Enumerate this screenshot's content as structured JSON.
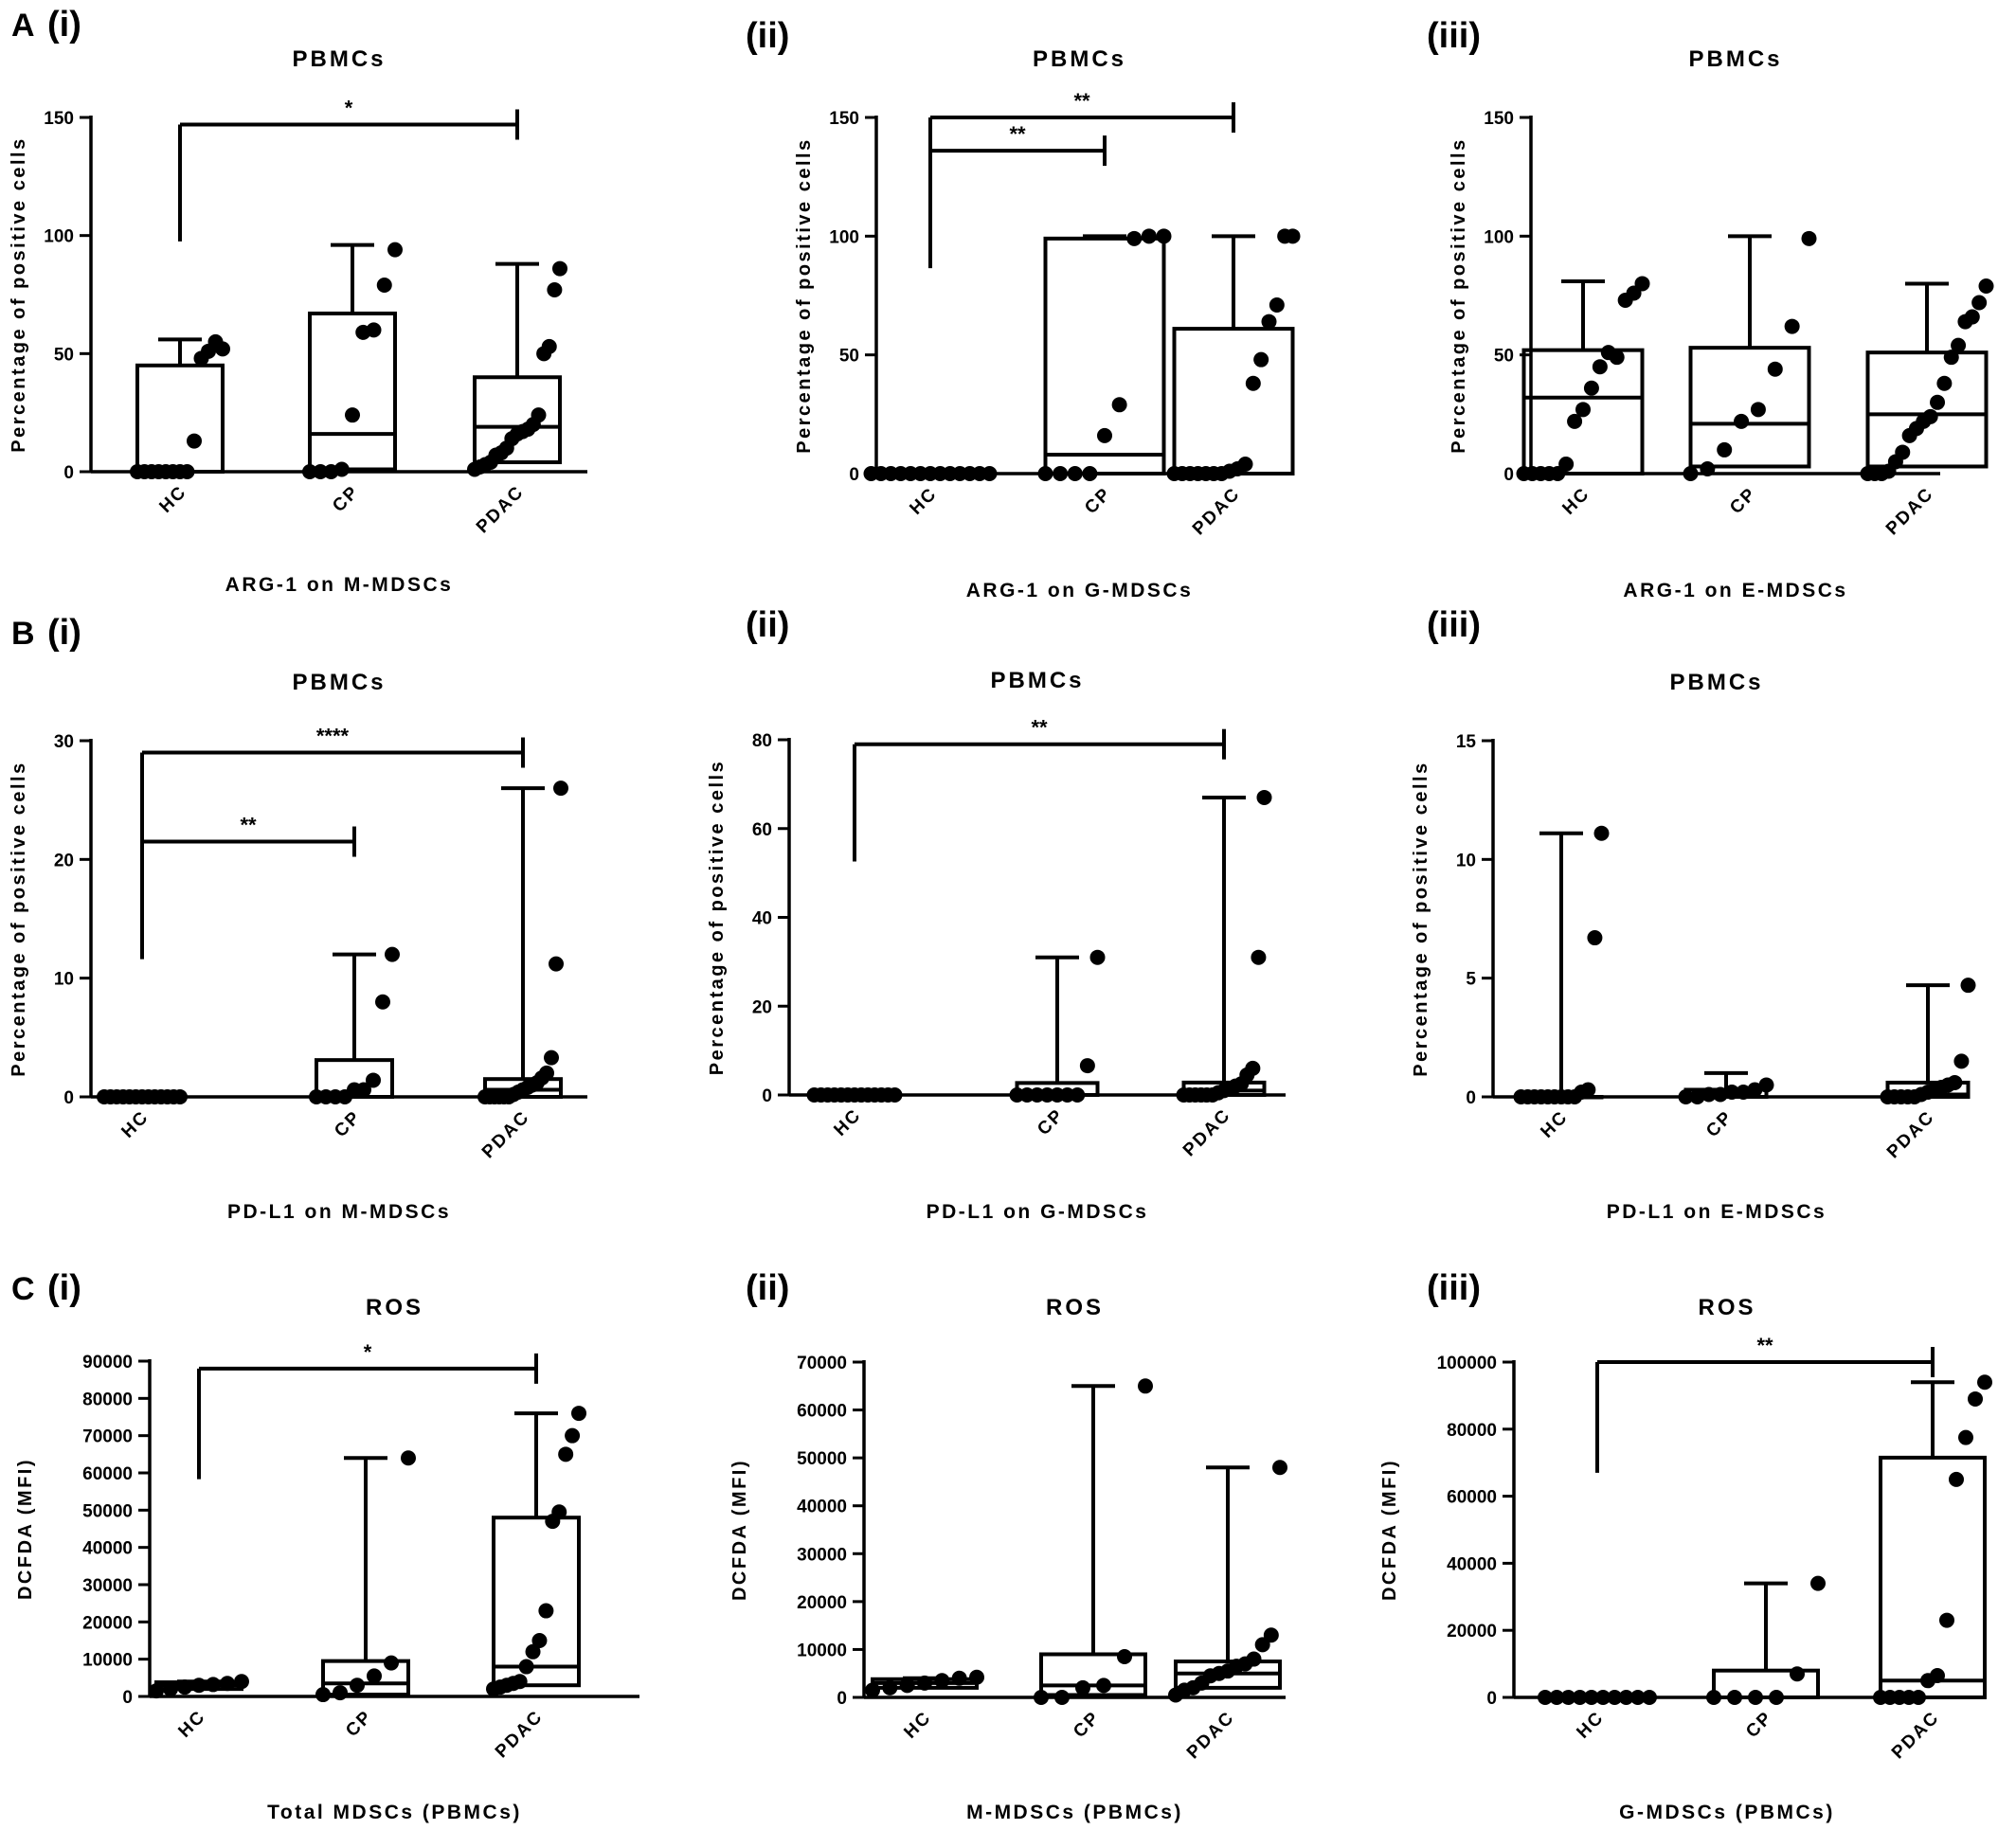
{
  "rows": [
    {
      "letter": "A"
    },
    {
      "letter": "B"
    },
    {
      "letter": "C"
    }
  ],
  "chart_data": [
    {
      "type": "box",
      "panel": "(i)",
      "title": "PBMCs",
      "ylabel": "Percentage of positive cells",
      "xlabel": "ARG-1 on M-MDSCs",
      "categories": [
        "HC",
        "CP",
        "PDAC"
      ],
      "ylim": [
        0,
        150
      ],
      "yticks": [
        0,
        50,
        100,
        150
      ],
      "grid": false,
      "boxes": [
        {
          "min": 0,
          "q1": 0,
          "median": 0,
          "q3": 45,
          "max": 56
        },
        {
          "min": 0,
          "q1": 1,
          "median": 16,
          "q3": 67,
          "max": 96
        },
        {
          "min": 1,
          "q1": 4,
          "median": 19,
          "q3": 40,
          "max": 88
        }
      ],
      "points": [
        [
          0,
          0,
          0,
          0,
          0,
          0,
          0,
          0,
          13,
          48,
          51,
          55,
          52
        ],
        [
          0,
          0,
          0,
          1,
          24,
          59,
          60,
          79,
          94
        ],
        [
          1,
          2,
          3,
          4,
          7,
          8,
          10,
          14,
          16,
          17,
          18,
          20,
          24,
          50,
          53,
          77,
          86
        ]
      ],
      "significance": [
        {
          "from": "HC",
          "to": "PDAC",
          "label": "*",
          "y": 147
        }
      ]
    },
    {
      "type": "box",
      "panel": "(ii)",
      "title": "PBMCs",
      "ylabel": "Percentage of positive cells",
      "xlabel": "ARG-1 on G-MDSCs",
      "categories": [
        "HC",
        "CP",
        "PDAC"
      ],
      "ylim": [
        0,
        150
      ],
      "yticks": [
        0,
        50,
        100,
        150
      ],
      "grid": false,
      "boxes": [
        {
          "min": 0,
          "q1": 0,
          "median": 0,
          "q3": 0,
          "max": 0
        },
        {
          "min": 0,
          "q1": 0,
          "median": 8,
          "q3": 99,
          "max": 100
        },
        {
          "min": 0,
          "q1": 0,
          "median": 0,
          "q3": 61,
          "max": 100
        }
      ],
      "points": [
        [
          0,
          0,
          0,
          0,
          0,
          0,
          0,
          0,
          0,
          0,
          0,
          0,
          0
        ],
        [
          0,
          0,
          0,
          0,
          16,
          29,
          99,
          100,
          100
        ],
        [
          0,
          0,
          0,
          0,
          0,
          0,
          0,
          1,
          2,
          4,
          38,
          48,
          64,
          71,
          100,
          100
        ]
      ],
      "significance": [
        {
          "from": "HC",
          "to": "CP",
          "label": "**",
          "y": 136
        },
        {
          "from": "HC",
          "to": "PDAC",
          "label": "**",
          "y": 150
        }
      ]
    },
    {
      "type": "box",
      "panel": "(iii)",
      "title": "PBMCs",
      "ylabel": "Percentage of positive cells",
      "xlabel": "ARG-1 on E-MDSCs",
      "categories": [
        "HC",
        "CP",
        "PDAC"
      ],
      "ylim": [
        0,
        150
      ],
      "yticks": [
        0,
        50,
        100,
        150
      ],
      "grid": false,
      "boxes": [
        {
          "min": 0,
          "q1": 0,
          "median": 32,
          "q3": 52,
          "max": 81
        },
        {
          "min": 0,
          "q1": 3,
          "median": 21,
          "q3": 53,
          "max": 100
        },
        {
          "min": 0,
          "q1": 3,
          "median": 25,
          "q3": 51,
          "max": 80
        }
      ],
      "points": [
        [
          0,
          0,
          0,
          0,
          0,
          4,
          22,
          27,
          36,
          45,
          51,
          49,
          73,
          76,
          80
        ],
        [
          0,
          2,
          10,
          22,
          27,
          44,
          62,
          99
        ],
        [
          0,
          0,
          0,
          1,
          5,
          9,
          16,
          19,
          22,
          24,
          30,
          38,
          49,
          54,
          64,
          66,
          72,
          79
        ]
      ],
      "significance": []
    },
    {
      "type": "box",
      "panel": "(i)",
      "title": "PBMCs",
      "ylabel": "Percentage of positive cells",
      "xlabel": "PD-L1 on M-MDSCs",
      "categories": [
        "HC",
        "CP",
        "PDAC"
      ],
      "ylim": [
        0,
        30
      ],
      "yticks": [
        0,
        10,
        20,
        30
      ],
      "grid": false,
      "boxes": [
        {
          "min": 0,
          "q1": 0,
          "median": 0,
          "q3": 0,
          "max": 0
        },
        {
          "min": 0,
          "q1": 0,
          "median": 0,
          "q3": 3.1,
          "max": 12
        },
        {
          "min": 0,
          "q1": 0,
          "median": 0.6,
          "q3": 1.5,
          "max": 26
        }
      ],
      "points": [
        [
          0,
          0,
          0,
          0,
          0,
          0,
          0,
          0,
          0,
          0,
          0,
          0,
          0
        ],
        [
          0,
          0,
          0,
          0,
          0.6,
          0.6,
          1.4,
          8,
          12
        ],
        [
          0,
          0,
          0,
          0,
          0,
          0,
          0.2,
          0.4,
          0.6,
          0.8,
          1,
          1.2,
          1.6,
          2,
          3.3,
          11.2,
          26
        ]
      ],
      "significance": [
        {
          "from": "HC",
          "to": "CP",
          "label": "**",
          "y": 21.5
        },
        {
          "from": "HC",
          "to": "PDAC",
          "label": "****",
          "y": 29
        }
      ]
    },
    {
      "type": "box",
      "panel": "(ii)",
      "title": "PBMCs",
      "ylabel": "Percentage of positive cells",
      "xlabel": "PD-L1 on G-MDSCs",
      "categories": [
        "HC",
        "CP",
        "PDAC"
      ],
      "ylim": [
        0,
        80
      ],
      "yticks": [
        0,
        20,
        40,
        60,
        80
      ],
      "grid": false,
      "boxes": [
        {
          "min": 0,
          "q1": 0,
          "median": 0,
          "q3": 0,
          "max": 0
        },
        {
          "min": 0,
          "q1": 0,
          "median": 0,
          "q3": 2.7,
          "max": 31
        },
        {
          "min": 0,
          "q1": 0,
          "median": 1,
          "q3": 2.8,
          "max": 67
        }
      ],
      "points": [
        [
          0,
          0,
          0,
          0,
          0,
          0,
          0,
          0,
          0,
          0,
          0,
          0,
          0
        ],
        [
          0,
          0,
          0,
          0,
          0,
          0,
          0,
          6.6,
          31
        ],
        [
          0,
          0,
          0,
          0,
          0,
          0,
          0.5,
          1,
          1.5,
          2,
          2.5,
          4.5,
          6,
          31,
          67
        ]
      ],
      "significance": [
        {
          "from": "HC",
          "to": "PDAC",
          "label": "**",
          "y": 79
        }
      ]
    },
    {
      "type": "box",
      "panel": "(iii)",
      "title": "PBMCs",
      "ylabel": "Percentage of positive cells",
      "xlabel": "PD-L1 on E-MDSCs",
      "categories": [
        "HC",
        "CP",
        "PDAC"
      ],
      "ylim": [
        0,
        15
      ],
      "yticks": [
        0,
        5,
        10,
        15
      ],
      "grid": false,
      "boxes": [
        {
          "min": 0,
          "q1": 0,
          "median": 0,
          "q3": 0,
          "max": 11.1
        },
        {
          "min": 0,
          "q1": 0,
          "median": 0,
          "q3": 0.3,
          "max": 1
        },
        {
          "min": 0,
          "q1": 0,
          "median": 0.1,
          "q3": 0.6,
          "max": 4.7
        }
      ],
      "points": [
        [
          0,
          0,
          0,
          0,
          0,
          0,
          0,
          0,
          0,
          0.2,
          0.3,
          6.7,
          11.1
        ],
        [
          0,
          0,
          0.1,
          0.1,
          0.2,
          0.2,
          0.3,
          0.5
        ],
        [
          0,
          0,
          0,
          0,
          0,
          0.1,
          0.2,
          0.3,
          0.4,
          0.5,
          0.6,
          1.5,
          4.7
        ]
      ],
      "significance": []
    },
    {
      "type": "box",
      "panel": "(i)",
      "title": "ROS",
      "ylabel": "DCFDA (MFI)",
      "xlabel": "Total MDSCs (PBMCs)",
      "categories": [
        "HC",
        "CP",
        "PDAC"
      ],
      "ylim": [
        0,
        90000
      ],
      "yticks": [
        0,
        10000,
        20000,
        30000,
        40000,
        50000,
        60000,
        70000,
        80000,
        90000
      ],
      "grid": false,
      "boxes": [
        {
          "min": 1500,
          "q1": 2000,
          "median": 3000,
          "q3": 3800,
          "max": 4000
        },
        {
          "min": 300,
          "q1": 500,
          "median": 3500,
          "q3": 9500,
          "max": 64000
        },
        {
          "min": 1500,
          "q1": 3000,
          "median": 8000,
          "q3": 48000,
          "max": 76000
        }
      ],
      "points": [
        [
          1500,
          2000,
          2500,
          3000,
          3200,
          3500,
          4000
        ],
        [
          500,
          1000,
          3000,
          5500,
          9000,
          64000
        ],
        [
          2000,
          2500,
          3000,
          3500,
          4000,
          8000,
          12000,
          15000,
          23000,
          47000,
          49500,
          65000,
          70000,
          76000
        ]
      ],
      "significance": [
        {
          "from": "HC",
          "to": "PDAC",
          "label": "*",
          "y": 88000
        }
      ]
    },
    {
      "type": "box",
      "panel": "(ii)",
      "title": "ROS",
      "ylabel": "DCFDA (MFI)",
      "xlabel": "M-MDSCs (PBMCs)",
      "categories": [
        "HC",
        "CP",
        "PDAC"
      ],
      "ylim": [
        0,
        70000
      ],
      "yticks": [
        0,
        10000,
        20000,
        30000,
        40000,
        50000,
        60000,
        70000
      ],
      "grid": false,
      "boxes": [
        {
          "min": 1500,
          "q1": 2000,
          "median": 3000,
          "q3": 3800,
          "max": 4000
        },
        {
          "min": 0,
          "q1": 500,
          "median": 2500,
          "q3": 9000,
          "max": 65000
        },
        {
          "min": 500,
          "q1": 2000,
          "median": 5000,
          "q3": 7500,
          "max": 48000
        }
      ],
      "points": [
        [
          1500,
          2000,
          2500,
          3000,
          3500,
          4000,
          4200
        ],
        [
          0,
          0,
          2000,
          2500,
          8500,
          65000
        ],
        [
          500,
          1500,
          2000,
          3000,
          4500,
          5000,
          5500,
          6500,
          7000,
          8000,
          11000,
          13000,
          48000
        ]
      ],
      "significance": []
    },
    {
      "type": "box",
      "panel": "(iii)",
      "title": "ROS",
      "ylabel": "DCFDA (MFI)",
      "xlabel": "G-MDSCs (PBMCs)",
      "categories": [
        "HC",
        "CP",
        "PDAC"
      ],
      "ylim": [
        0,
        100000
      ],
      "yticks": [
        0,
        20000,
        40000,
        60000,
        80000,
        100000
      ],
      "grid": false,
      "boxes": [
        {
          "min": 0,
          "q1": 0,
          "median": 0,
          "q3": 0,
          "max": 0
        },
        {
          "min": 0,
          "q1": 0,
          "median": 0,
          "q3": 8000,
          "max": 34000
        },
        {
          "min": 0,
          "q1": 0,
          "median": 5000,
          "q3": 71500,
          "max": 94000
        }
      ],
      "points": [
        [
          0,
          0,
          0,
          0,
          0,
          0,
          0,
          0,
          0,
          0
        ],
        [
          0,
          0,
          0,
          0,
          7000,
          34000
        ],
        [
          0,
          0,
          0,
          0,
          0,
          5000,
          6500,
          23000,
          65000,
          77500,
          89000,
          94000
        ]
      ],
      "significance": [
        {
          "from": "HC",
          "to": "PDAC",
          "label": "**",
          "y": 100000
        }
      ]
    }
  ]
}
